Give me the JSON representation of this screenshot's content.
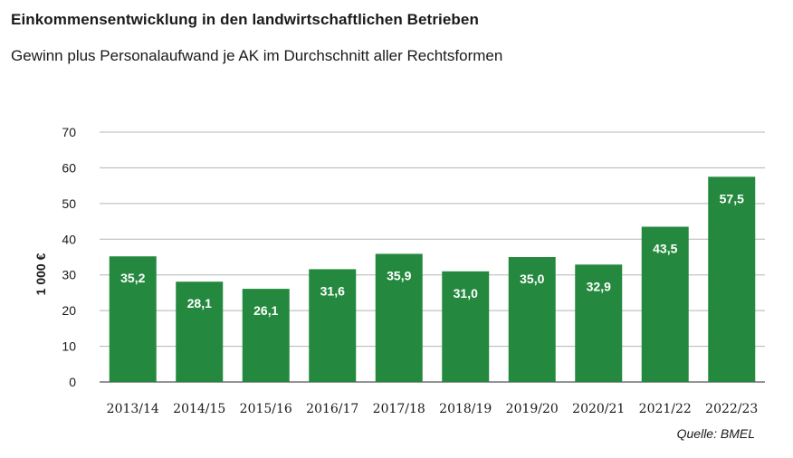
{
  "chart_data": {
    "type": "bar",
    "title": "Einkommensentwicklung in den landwirtschaftlichen Betrieben",
    "subtitle": "Gewinn plus Personalaufwand je AK im Durchschnitt aller Rechtsformen",
    "ylabel": "1 000 €",
    "xlabel": "",
    "ylim": [
      0,
      70
    ],
    "yticks": [
      0,
      10,
      20,
      30,
      40,
      50,
      60,
      70
    ],
    "grid": true,
    "categories": [
      "2013/14",
      "2014/15",
      "2015/16",
      "2016/17",
      "2017/18",
      "2018/19",
      "2019/20",
      "2020/21",
      "2021/22",
      "2022/23"
    ],
    "values": [
      35.2,
      28.1,
      26.1,
      31.6,
      35.9,
      31.0,
      35.0,
      32.9,
      43.5,
      57.5
    ],
    "value_labels": [
      "35,2",
      "28,1",
      "26,1",
      "31,6",
      "35,9",
      "31,0",
      "35,0",
      "32,9",
      "43,5",
      "57,5"
    ],
    "bar_color": "#24893f",
    "source": "Quelle: BMEL"
  }
}
